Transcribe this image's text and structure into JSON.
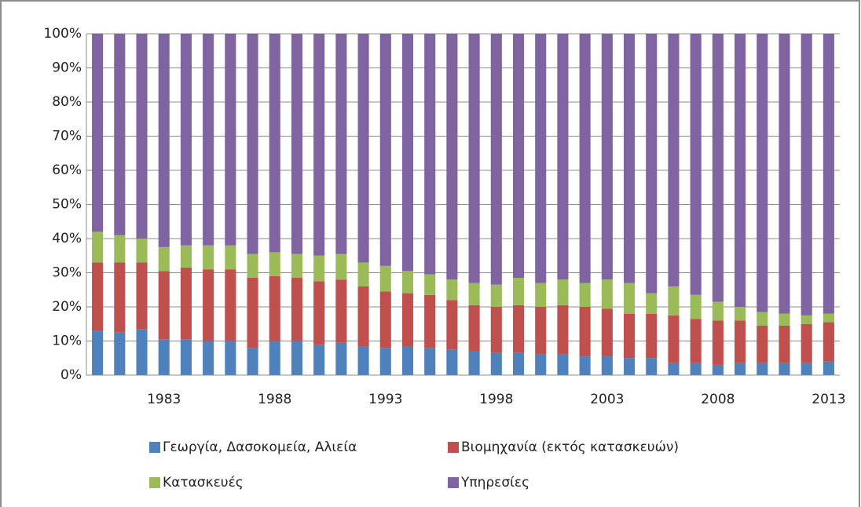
{
  "chart_data": {
    "type": "stacked-bar-100",
    "categories": [
      null,
      null,
      null,
      "1983",
      null,
      null,
      null,
      null,
      "1988",
      null,
      null,
      null,
      null,
      "1993",
      null,
      null,
      null,
      null,
      "1998",
      null,
      null,
      null,
      null,
      "2003",
      null,
      null,
      null,
      null,
      "2008",
      null,
      null,
      null,
      null,
      "2013"
    ],
    "series": [
      {
        "name": "Γεωργία, Δασοκομεία, Αλιεία",
        "color": "#4f81bd",
        "values": [
          13,
          12.5,
          13.5,
          10.5,
          10.5,
          10,
          10,
          8,
          10,
          10,
          9,
          9.5,
          8.5,
          8,
          8.5,
          8,
          7.5,
          7,
          6.5,
          6.5,
          6,
          6,
          5.5,
          5.5,
          5,
          5,
          3.5,
          3.5,
          3,
          3.5,
          3.5,
          3.5,
          3.5,
          4
        ]
      },
      {
        "name": "Βιομηχανία (εκτός κατασκευών)",
        "color": "#c0504d",
        "values": [
          20,
          20.5,
          19.5,
          20,
          21,
          21,
          21,
          20.5,
          19,
          18.5,
          18.5,
          18.5,
          17.5,
          16.5,
          15.5,
          15.5,
          14.5,
          13.5,
          13.5,
          14,
          14,
          14.5,
          14.5,
          14,
          13,
          13,
          14,
          13,
          13,
          12.5,
          11,
          11,
          11.5,
          11.5
        ]
      },
      {
        "name": "Κατασκευές",
        "color": "#9bbb59",
        "values": [
          9,
          8,
          7,
          7,
          6.5,
          7,
          7,
          7,
          7,
          7,
          7.5,
          7.5,
          7,
          7.5,
          6.5,
          6,
          6,
          6.5,
          6.5,
          8,
          7,
          7.5,
          7,
          8.5,
          9,
          6,
          8.5,
          7,
          5.5,
          4,
          4,
          3.5,
          2.5,
          2.5
        ]
      },
      {
        "name": "Υπηρεσίες",
        "color": "#8064a2",
        "values": [
          58,
          59,
          60,
          62.5,
          62,
          62,
          62,
          64.5,
          64,
          64.5,
          65,
          64.5,
          67,
          68,
          69.5,
          70.5,
          72,
          73,
          73.5,
          71.5,
          73,
          72,
          73,
          72,
          73,
          76,
          74,
          76.5,
          78.5,
          80,
          81.5,
          82,
          82.5,
          82
        ]
      }
    ],
    "ylim": [
      0,
      100
    ],
    "yticks": [
      {
        "value": 0,
        "label": "0%"
      },
      {
        "value": 10,
        "label": "10%"
      },
      {
        "value": 20,
        "label": "20%"
      },
      {
        "value": 30,
        "label": "30%"
      },
      {
        "value": 40,
        "label": "40%"
      },
      {
        "value": 50,
        "label": "50%"
      },
      {
        "value": 60,
        "label": "60%"
      },
      {
        "value": 70,
        "label": "70%"
      },
      {
        "value": 80,
        "label": "80%"
      },
      {
        "value": 90,
        "label": "90%"
      },
      {
        "value": 100,
        "label": "100%"
      }
    ],
    "grid": true
  }
}
